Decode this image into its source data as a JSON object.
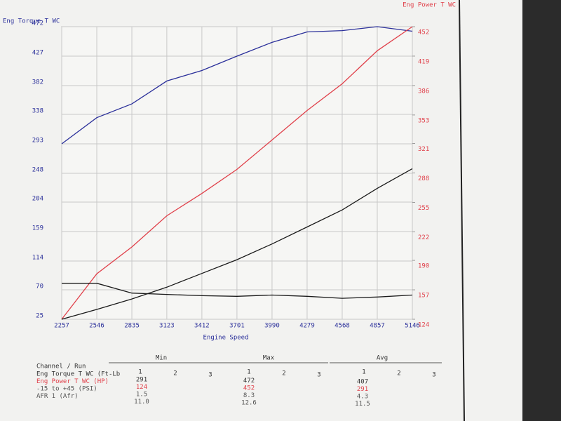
{
  "chart_data": {
    "type": "line",
    "y_label": "Eng Torque T WC",
    "y2_label": "Eng Power T WC",
    "x_label": "Engine Speed",
    "x": [
      2257,
      2546,
      2835,
      3123,
      3412,
      3701,
      3990,
      4279,
      4568,
      4857,
      5146
    ],
    "xlim": [
      2257,
      5146
    ],
    "xticks": [
      2257,
      2546,
      2835,
      3123,
      3412,
      3701,
      3990,
      4279,
      4568,
      4857,
      5146
    ],
    "ylim": [
      25,
      472
    ],
    "yticks": [
      25,
      70,
      114,
      159,
      204,
      248,
      293,
      338,
      382,
      427,
      472
    ],
    "y2lim": [
      124,
      452
    ],
    "y2ticks": [
      124,
      157,
      190,
      222,
      255,
      288,
      321,
      353,
      386,
      419,
      452
    ],
    "grid": true,
    "series": [
      {
        "name": "Eng Torque T WC",
        "color": "#2a2f9a",
        "values": [
          293,
          333,
          354,
          389,
          405,
          427,
          448,
          464,
          466,
          472,
          465
        ]
      },
      {
        "name": "Eng Power T WC",
        "color": "#e0404a",
        "axis": "y2",
        "values": [
          124,
          175,
          205,
          240,
          265,
          292,
          325,
          358,
          388,
          425,
          452
        ]
      },
      {
        "color": "#1a1a1a",
        "values": [
          25,
          40,
          56,
          74,
          95,
          116,
          140,
          166,
          192,
          225,
          255
        ]
      },
      {
        "color": "#1a1a1a",
        "values": [
          80,
          80,
          65,
          63,
          61,
          60,
          62,
          60,
          57,
          59,
          62
        ]
      }
    ]
  },
  "table": {
    "corner": "Channel / Run",
    "groups": [
      {
        "name": "Min",
        "runs": [
          "1",
          "2",
          "3"
        ]
      },
      {
        "name": "Max",
        "runs": [
          "1",
          "2",
          "3"
        ]
      },
      {
        "name": "Avg",
        "runs": [
          "1",
          "2",
          "3"
        ]
      }
    ],
    "rows": [
      {
        "label": "Eng Torque T WC (Ft-Lb",
        "color": "#333",
        "cells": [
          "291",
          "472",
          "407"
        ]
      },
      {
        "label": "Eng Power T WC (HP)",
        "color": "#e0404a",
        "cells": [
          "124",
          "452",
          "291"
        ]
      },
      {
        "label": "-15 to +45 (PSI)",
        "color": "#555",
        "cells": [
          "1.5",
          "8.3",
          "4.3"
        ]
      },
      {
        "label": "AFR 1 (Afr)",
        "color": "#555",
        "cells": [
          "11.0",
          "12.6",
          "11.5"
        ]
      }
    ]
  }
}
